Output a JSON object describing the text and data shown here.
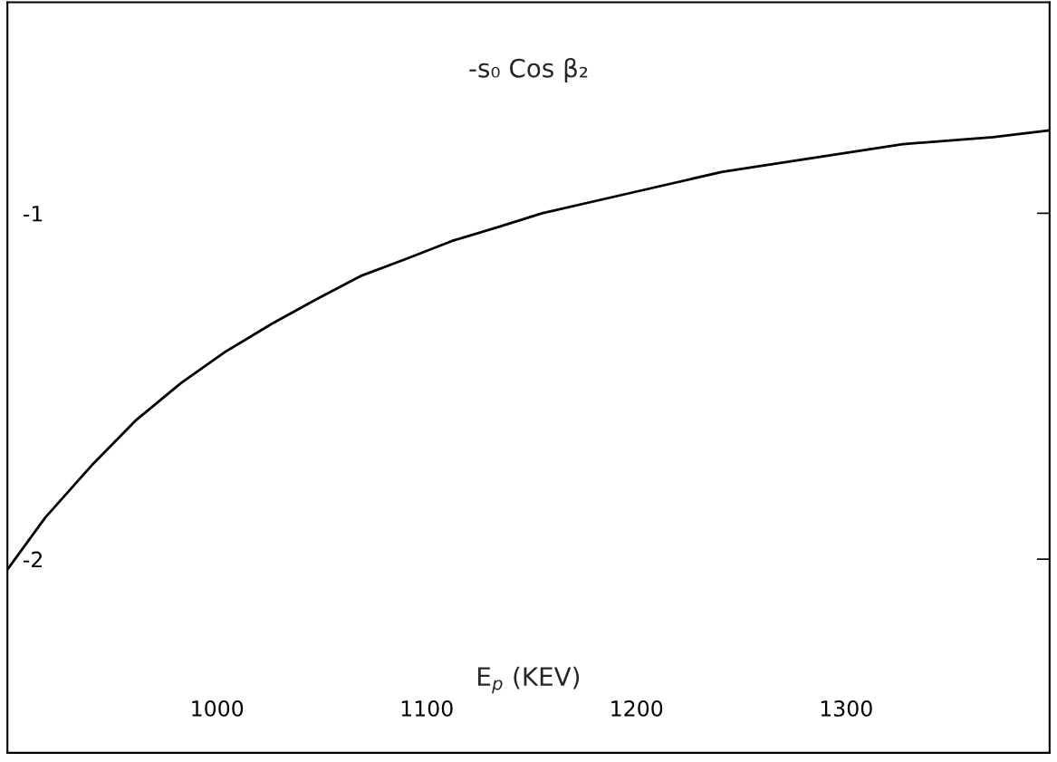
{
  "chart_data": {
    "type": "line",
    "title": "-s₀ Cos β₂",
    "xlabel": "E$_{p}$ (KEV)",
    "x": [
      900,
      918,
      940,
      961,
      983,
      1004,
      1026,
      1047,
      1069,
      1091,
      1112,
      1134,
      1155,
      1198,
      1241,
      1284,
      1327,
      1370,
      1397
    ],
    "series": [
      {
        "color": "#000000",
        "values": [
          -2.03,
          -1.88,
          -1.73,
          -1.6,
          -1.49,
          -1.4,
          -1.32,
          -1.25,
          -1.18,
          -1.13,
          -1.08,
          -1.04,
          -1.0,
          -0.94,
          -0.88,
          -0.84,
          -0.8,
          -0.78,
          -0.76
        ]
      }
    ],
    "xlim": [
      900,
      1397
    ],
    "ylim": [
      -2.56,
      -0.39
    ],
    "xticks": [
      1000,
      1100,
      1200,
      1300
    ],
    "yticks": [
      -2,
      -1
    ],
    "grid": false,
    "legend": false
  }
}
